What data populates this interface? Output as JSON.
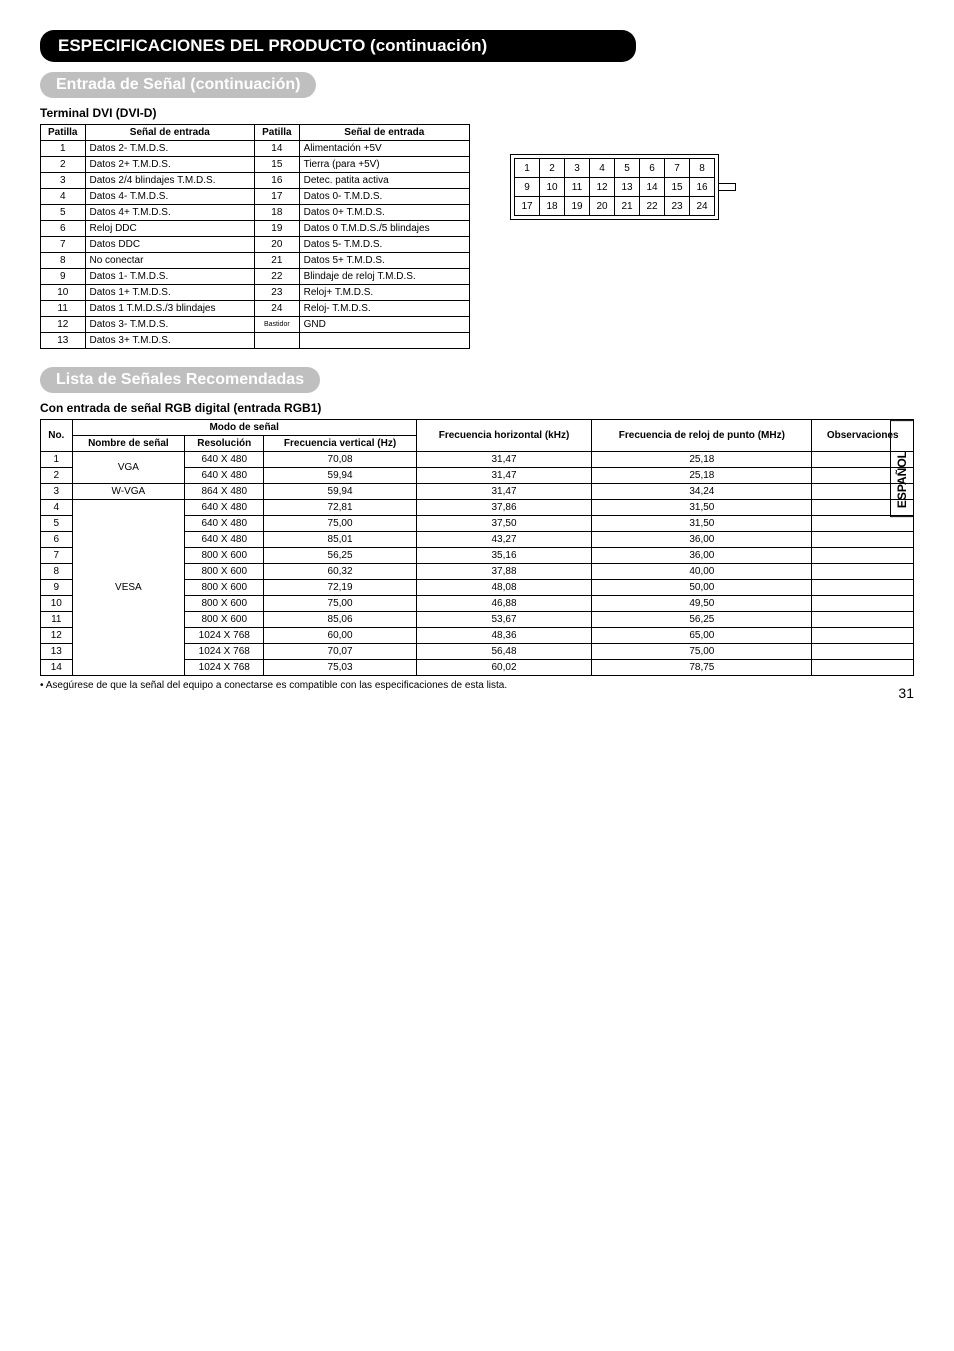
{
  "headers": {
    "main": "ESPECIFICACIONES DEL PRODUCTO (continuación)",
    "sub1": "Entrada de Señal (continuación)",
    "sub2": "Lista de Señales Recomendadas"
  },
  "terminal_title": "Terminal DVI (DVI-D)",
  "pin_table": {
    "cols": [
      "Patilla",
      "Señal de entrada",
      "Patilla",
      "Señal de entrada"
    ],
    "rows": [
      [
        "1",
        "Datos 2- T.M.D.S.",
        "14",
        "Alimentación +5V"
      ],
      [
        "2",
        "Datos 2+ T.M.D.S.",
        "15",
        "Tierra (para +5V)"
      ],
      [
        "3",
        "Datos 2/4 blindajes T.M.D.S.",
        "16",
        "Detec. patita activa"
      ],
      [
        "4",
        "Datos 4- T.M.D.S.",
        "17",
        "Datos 0- T.M.D.S."
      ],
      [
        "5",
        "Datos 4+ T.M.D.S.",
        "18",
        "Datos 0+ T.M.D.S."
      ],
      [
        "6",
        "Reloj DDC",
        "19",
        "Datos 0 T.M.D.S./5 blindajes"
      ],
      [
        "7",
        "Datos DDC",
        "20",
        "Datos 5- T.M.D.S."
      ],
      [
        "8",
        "No conectar",
        "21",
        "Datos 5+ T.M.D.S."
      ],
      [
        "9",
        "Datos 1- T.M.D.S.",
        "22",
        "Blindaje de reloj T.M.D.S."
      ],
      [
        "10",
        "Datos 1+ T.M.D.S.",
        "23",
        "Reloj+ T.M.D.S."
      ],
      [
        "11",
        "Datos 1 T.M.D.S./3 blindajes",
        "24",
        "Reloj- T.M.D.S."
      ],
      [
        "12",
        "Datos 3- T.M.D.S.",
        "Bastidor",
        "GND"
      ],
      [
        "13",
        "Datos 3+ T.M.D.S.",
        "",
        ""
      ]
    ]
  },
  "connector": {
    "r1": [
      "1",
      "2",
      "3",
      "4",
      "5",
      "6",
      "7",
      "8"
    ],
    "r2": [
      "9",
      "10",
      "11",
      "12",
      "13",
      "14",
      "15",
      "16"
    ],
    "r3": [
      "17",
      "18",
      "19",
      "20",
      "21",
      "22",
      "23",
      "24"
    ]
  },
  "signals_title": "Con entrada de señal RGB digital (entrada RGB1)",
  "signals_table": {
    "headers": {
      "modo": "Modo de señal",
      "no": "No.",
      "nombre": "Nombre de señal",
      "resolucion": "Resolución",
      "fv": "Frecuencia vertical (Hz)",
      "fh": "Frecuencia horizontal (kHz)",
      "fr": "Frecuencia de reloj de punto (MHz)",
      "obs": "Observaciones"
    },
    "groups": [
      {
        "name": "VGA",
        "rows": [
          [
            "1",
            "640 X 480",
            "70,08",
            "31,47",
            "25,18",
            ""
          ],
          [
            "2",
            "640 X 480",
            "59,94",
            "31,47",
            "25,18",
            ""
          ]
        ]
      },
      {
        "name": "W-VGA",
        "rows": [
          [
            "3",
            "864 X 480",
            "59,94",
            "31,47",
            "34,24",
            ""
          ]
        ]
      },
      {
        "name": "VESA",
        "rows": [
          [
            "4",
            "640 X 480",
            "72,81",
            "37,86",
            "31,50",
            ""
          ],
          [
            "5",
            "640 X 480",
            "75,00",
            "37,50",
            "31,50",
            ""
          ],
          [
            "6",
            "640 X 480",
            "85,01",
            "43,27",
            "36,00",
            ""
          ],
          [
            "7",
            "800 X 600",
            "56,25",
            "35,16",
            "36,00",
            ""
          ],
          [
            "8",
            "800 X 600",
            "60,32",
            "37,88",
            "40,00",
            ""
          ],
          [
            "9",
            "800 X 600",
            "72,19",
            "48,08",
            "50,00",
            ""
          ],
          [
            "10",
            "800 X 600",
            "75,00",
            "46,88",
            "49,50",
            ""
          ],
          [
            "11",
            "800 X 600",
            "85,06",
            "53,67",
            "56,25",
            ""
          ],
          [
            "12",
            "1024 X 768",
            "60,00",
            "48,36",
            "65,00",
            ""
          ],
          [
            "13",
            "1024 X 768",
            "70,07",
            "56,48",
            "75,00",
            ""
          ],
          [
            "14",
            "1024 X 768",
            "75,03",
            "60,02",
            "78,75",
            ""
          ]
        ]
      }
    ]
  },
  "note": "• Asegúrese de que la señal del equipo a conectarse es compatible con las especificaciones de esta lista.",
  "side_tab": "ESPAÑOL",
  "page": "31"
}
